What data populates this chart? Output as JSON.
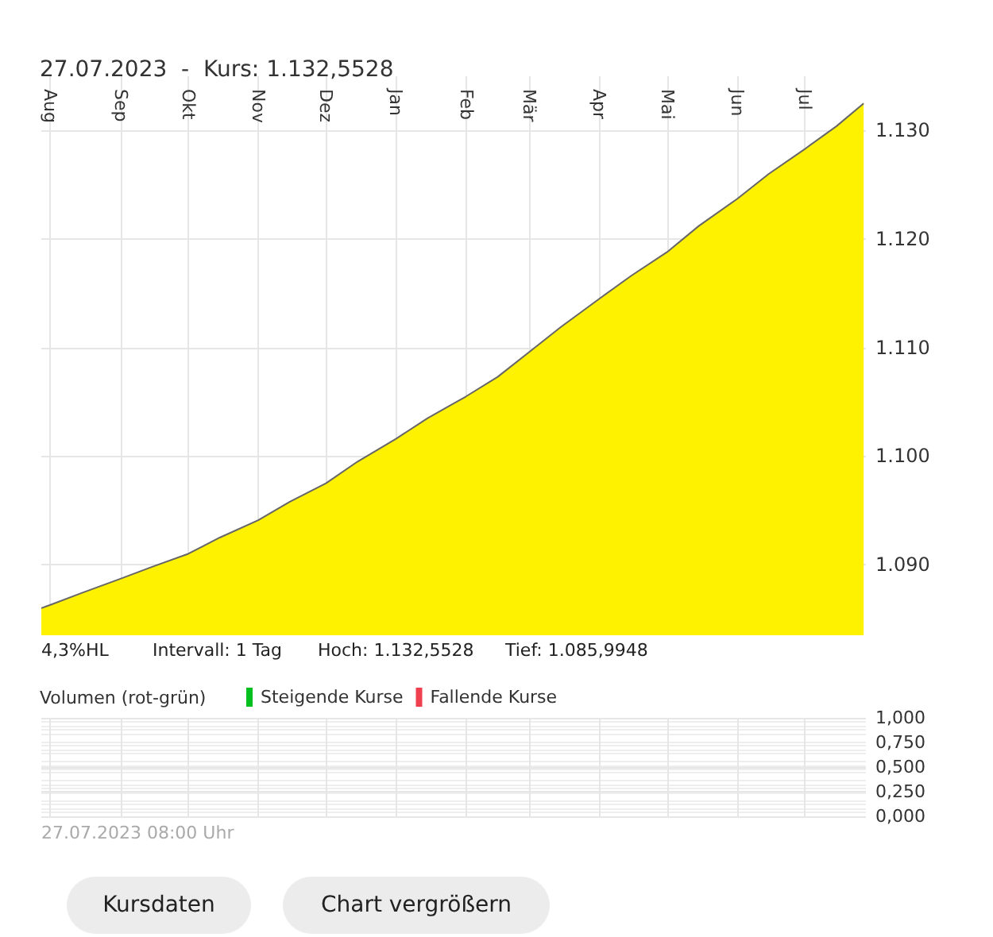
{
  "chart_data": [
    {
      "type": "area",
      "title": "27.07.2023  -  Kurs: 1.132,5528",
      "x": [
        "2022-07-28",
        "2022-08-01",
        "2022-08-15",
        "2022-09-01",
        "2022-09-15",
        "2022-10-01",
        "2022-10-15",
        "2022-11-01",
        "2022-11-15",
        "2022-12-01",
        "2022-12-15",
        "2023-01-01",
        "2023-01-15",
        "2023-02-01",
        "2023-02-15",
        "2023-03-01",
        "2023-03-15",
        "2023-04-01",
        "2023-04-15",
        "2023-05-01",
        "2023-05-15",
        "2023-06-01",
        "2023-06-15",
        "2023-07-01",
        "2023-07-15",
        "2023-07-27"
      ],
      "series": [
        {
          "color": "#fff200",
          "values": [
            1086.0,
            1086.3,
            1087.4,
            1088.7,
            1089.8,
            1091.0,
            1092.5,
            1094.1,
            1095.8,
            1097.5,
            1099.5,
            1101.6,
            1103.5,
            1105.5,
            1107.3,
            1109.6,
            1111.9,
            1114.5,
            1116.6,
            1118.8,
            1121.2,
            1123.7,
            1126.0,
            1128.3,
            1130.4,
            1132.5
          ]
        }
      ],
      "xlim": [
        "2022-07-28",
        "2023-07-28"
      ],
      "xticks": [
        {
          "value": "2022-08-01",
          "label": "Aug"
        },
        {
          "value": "2022-09-01",
          "label": "Sep"
        },
        {
          "value": "2022-10-01",
          "label": "Okt"
        },
        {
          "value": "2022-11-01",
          "label": "Nov"
        },
        {
          "value": "2022-12-01",
          "label": "Dez"
        },
        {
          "value": "2023-01-01",
          "label": "Jan"
        },
        {
          "value": "2023-02-01",
          "label": "Feb"
        },
        {
          "value": "2023-03-01",
          "label": "Mär"
        },
        {
          "value": "2023-04-01",
          "label": "Apr"
        },
        {
          "value": "2023-05-01",
          "label": "Mai"
        },
        {
          "value": "2023-06-01",
          "label": "Jun"
        },
        {
          "value": "2023-07-01",
          "label": "Jul"
        }
      ],
      "ylim": [
        1083.5,
        1135
      ],
      "yticks": [
        {
          "value": 1090,
          "label": "1.090"
        },
        {
          "value": 1100,
          "label": "1.100"
        },
        {
          "value": 1110,
          "label": "1.110"
        },
        {
          "value": 1120,
          "label": "1.120"
        },
        {
          "value": 1130,
          "label": "1.130"
        }
      ],
      "grid": true,
      "marker": "none",
      "line_style": "solid",
      "legend": false,
      "annotations": [
        "4,3%HL",
        "Intervall: 1 Tag",
        "Hoch: 1.132,5528",
        "Tief: 1.085,9948"
      ]
    },
    {
      "type": "bar",
      "title": "Volumen (rot-grün)",
      "x": [
        "2023-07-27"
      ],
      "series": [
        {
          "name": "Steigende Kurse",
          "color": "#00c020",
          "values": [
            0
          ]
        },
        {
          "name": "Fallende Kurse",
          "color": "#f04050",
          "values": [
            0
          ]
        }
      ],
      "xlim": [
        "2022-07-28",
        "2023-07-28"
      ],
      "xticks": [
        {
          "value": "2022-08-01",
          "label": null
        },
        {
          "value": "2022-09-01",
          "label": null
        },
        {
          "value": "2022-10-01",
          "label": null
        },
        {
          "value": "2022-11-01",
          "label": null
        },
        {
          "value": "2022-12-01",
          "label": null
        },
        {
          "value": "2023-01-01",
          "label": null
        },
        {
          "value": "2023-02-01",
          "label": null
        },
        {
          "value": "2023-03-01",
          "label": null
        },
        {
          "value": "2023-04-01",
          "label": null
        },
        {
          "value": "2023-05-01",
          "label": null
        },
        {
          "value": "2023-06-01",
          "label": null
        },
        {
          "value": "2023-07-01",
          "label": null
        }
      ],
      "ylim": [
        0,
        1
      ],
      "yticks": [
        {
          "value": 0,
          "label": "0,000"
        },
        {
          "value": 0.25,
          "label": "0,250"
        },
        {
          "value": 0.5,
          "label": "0,500"
        },
        {
          "value": 0.75,
          "label": "0,750"
        },
        {
          "value": 1,
          "label": "1,000"
        }
      ],
      "grid": true,
      "legend": "top left",
      "tick_labels": "y",
      "annotations": [
        "27.07.2023 08:00 Uhr",
        "Kursdaten",
        "Chart vergrößern"
      ]
    }
  ]
}
